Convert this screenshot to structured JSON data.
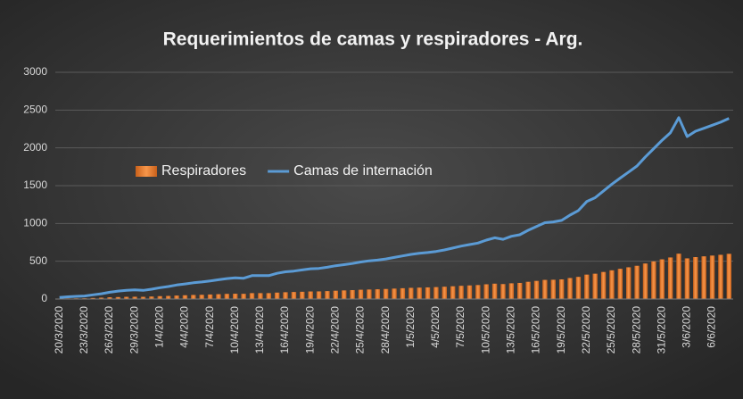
{
  "chart_data": {
    "type": "bar-line",
    "title": "Requerimientos de camas y respiradores - Arg.",
    "categories": [
      "20/3/2020",
      null,
      null,
      "23/3/2020",
      null,
      null,
      "26/3/2020",
      null,
      null,
      "29/3/2020",
      null,
      null,
      "1/4/2020",
      null,
      null,
      "4/4/2020",
      null,
      null,
      "7/4/2020",
      null,
      null,
      "10/4/2020",
      null,
      null,
      "13/4/2020",
      null,
      null,
      "16/4/2020",
      null,
      null,
      "19/4/2020",
      null,
      null,
      "22/4/2020",
      null,
      null,
      "25/4/2020",
      null,
      null,
      "28/4/2020",
      null,
      null,
      "1/5/2020",
      null,
      null,
      "4/5/2020",
      null,
      null,
      "7/5/2020",
      null,
      null,
      "10/5/2020",
      null,
      null,
      "13/5/2020",
      null,
      null,
      "16/5/2020",
      null,
      null,
      "19/5/2020",
      null,
      null,
      "22/5/2020",
      null,
      null,
      "25/5/2020",
      null,
      null,
      "28/5/2020",
      null,
      null,
      "31/5/2020",
      null,
      null,
      "3/6/2020",
      null,
      null,
      "6/6/2020",
      null,
      null
    ],
    "series": [
      {
        "name": "Respiradores",
        "type": "bar",
        "color": "#ed7d31",
        "values": [
          5,
          8,
          9,
          10,
          14,
          18,
          23,
          26,
          29,
          30,
          29,
          33,
          38,
          41,
          46,
          50,
          54,
          56,
          60,
          64,
          68,
          70,
          69,
          78,
          78,
          78,
          85,
          90,
          93,
          96,
          100,
          101,
          105,
          110,
          114,
          118,
          123,
          126,
          129,
          133,
          138,
          143,
          148,
          151,
          154,
          158,
          163,
          169,
          175,
          180,
          185,
          195,
          203,
          198,
          208,
          213,
          228,
          240,
          253,
          255,
          260,
          278,
          293,
          323,
          335,
          358,
          380,
          400,
          420,
          440,
          470,
          498,
          525,
          550,
          600,
          538,
          555,
          565,
          575,
          585,
          598
        ]
      },
      {
        "name": "Camas de internación",
        "type": "line",
        "color": "#5b9bd5",
        "values": [
          20,
          30,
          35,
          40,
          55,
          70,
          90,
          105,
          115,
          120,
          115,
          130,
          150,
          165,
          185,
          200,
          215,
          225,
          240,
          255,
          270,
          280,
          275,
          310,
          310,
          310,
          340,
          360,
          370,
          385,
          400,
          405,
          420,
          440,
          455,
          470,
          490,
          505,
          515,
          530,
          550,
          570,
          590,
          605,
          615,
          630,
          650,
          675,
          700,
          720,
          740,
          780,
          810,
          790,
          830,
          850,
          910,
          960,
          1010,
          1020,
          1040,
          1110,
          1170,
          1290,
          1340,
          1430,
          1520,
          1600,
          1680,
          1760,
          1880,
          1990,
          2100,
          2200,
          2400,
          2150,
          2220,
          2260,
          2300,
          2340,
          2390
        ]
      }
    ],
    "ylim": [
      0,
      3000
    ],
    "yticks": [
      0,
      500,
      1000,
      1500,
      2000,
      2500,
      3000
    ],
    "grid": true
  }
}
